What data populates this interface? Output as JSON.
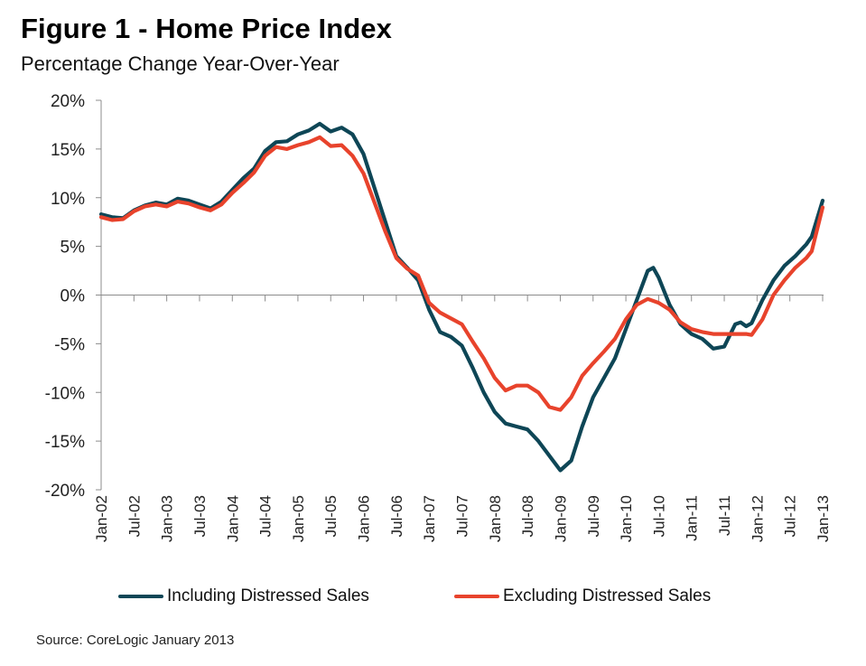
{
  "chart_data": {
    "type": "line",
    "title": "Figure 1 - Home Price Index",
    "subtitle": "Percentage Change Year-Over-Year",
    "xlabel": "",
    "ylabel": "",
    "ylim": [
      -20,
      20
    ],
    "yticks": [
      20,
      15,
      10,
      5,
      0,
      -5,
      -10,
      -15,
      -20
    ],
    "ytick_labels": [
      "20%",
      "15%",
      "10%",
      "5%",
      "0%",
      "-5%",
      "-10%",
      "-15%",
      "-20%"
    ],
    "xtick_labels": [
      "Jan-02",
      "Jul-02",
      "Jan-03",
      "Jul-03",
      "Jan-04",
      "Jul-04",
      "Jan-05",
      "Jul-05",
      "Jan-06",
      "Jul-06",
      "Jan-07",
      "Jul-07",
      "Jan-08",
      "Jul-08",
      "Jan-09",
      "Jul-09",
      "Jan-10",
      "Jul-10",
      "Jan-11",
      "Jul-11",
      "Jan-12",
      "Jul-12",
      "Jan-13"
    ],
    "x_unit": "months since Jan-02",
    "x_range": [
      0,
      132
    ],
    "grid": false,
    "legend_position": "bottom",
    "series": [
      {
        "name": "Including Distressed Sales",
        "color": "#0e4656",
        "x": [
          0,
          2,
          4,
          6,
          8,
          10,
          12,
          14,
          16,
          18,
          20,
          22,
          24,
          26,
          28,
          30,
          32,
          34,
          36,
          38,
          40,
          42,
          44,
          46,
          48,
          50,
          52,
          54,
          56,
          58,
          60,
          62,
          64,
          66,
          68,
          70,
          72,
          74,
          76,
          78,
          80,
          82,
          84,
          86,
          88,
          90,
          92,
          94,
          96,
          98,
          100,
          101,
          102,
          104,
          106,
          108,
          110,
          112,
          114,
          116,
          117,
          118,
          119,
          121,
          123,
          125,
          127,
          129,
          130,
          132
        ],
        "values": [
          8.3,
          8.0,
          7.9,
          8.7,
          9.2,
          9.5,
          9.3,
          9.9,
          9.7,
          9.3,
          8.9,
          9.6,
          10.8,
          12.0,
          13.0,
          14.8,
          15.7,
          15.8,
          16.5,
          16.9,
          17.6,
          16.8,
          17.2,
          16.5,
          14.5,
          11.0,
          7.5,
          4.0,
          2.8,
          1.5,
          -1.5,
          -3.8,
          -4.3,
          -5.2,
          -7.5,
          -10.0,
          -12.0,
          -13.2,
          -13.5,
          -13.8,
          -15.0,
          -16.5,
          -18.0,
          -17.0,
          -13.5,
          -10.5,
          -8.5,
          -6.5,
          -3.5,
          -0.5,
          2.5,
          2.8,
          1.8,
          -1.0,
          -3.0,
          -4.0,
          -4.5,
          -5.5,
          -5.3,
          -3.0,
          -2.8,
          -3.2,
          -2.9,
          -0.5,
          1.5,
          3.0,
          4.0,
          5.2,
          6.0,
          9.7
        ]
      },
      {
        "name": "Excluding Distressed Sales",
        "color": "#e8432c",
        "x": [
          0,
          2,
          4,
          6,
          8,
          10,
          12,
          14,
          16,
          18,
          20,
          22,
          24,
          26,
          28,
          30,
          32,
          34,
          36,
          38,
          40,
          42,
          44,
          46,
          48,
          50,
          52,
          54,
          56,
          58,
          60,
          62,
          64,
          66,
          68,
          70,
          72,
          74,
          76,
          78,
          80,
          82,
          84,
          86,
          88,
          90,
          92,
          94,
          96,
          98,
          100,
          102,
          104,
          106,
          108,
          110,
          112,
          114,
          116,
          118,
          119,
          121,
          123,
          125,
          127,
          129,
          130,
          132
        ],
        "values": [
          8.0,
          7.7,
          7.8,
          8.6,
          9.1,
          9.3,
          9.1,
          9.6,
          9.4,
          9.0,
          8.7,
          9.3,
          10.5,
          11.5,
          12.6,
          14.3,
          15.2,
          15.0,
          15.4,
          15.7,
          16.2,
          15.3,
          15.4,
          14.3,
          12.5,
          9.5,
          6.5,
          3.8,
          2.7,
          2.0,
          -0.8,
          -1.8,
          -2.4,
          -3.0,
          -4.8,
          -6.5,
          -8.5,
          -9.8,
          -9.3,
          -9.3,
          -10.0,
          -11.5,
          -11.8,
          -10.5,
          -8.3,
          -7.0,
          -5.8,
          -4.5,
          -2.5,
          -1.0,
          -0.4,
          -0.8,
          -1.5,
          -2.8,
          -3.5,
          -3.8,
          -4.0,
          -4.0,
          -4.0,
          -4.0,
          -4.1,
          -2.5,
          0.0,
          1.5,
          2.8,
          3.8,
          4.5,
          9.0
        ]
      }
    ]
  },
  "source": "Source: CoreLogic January 2013"
}
